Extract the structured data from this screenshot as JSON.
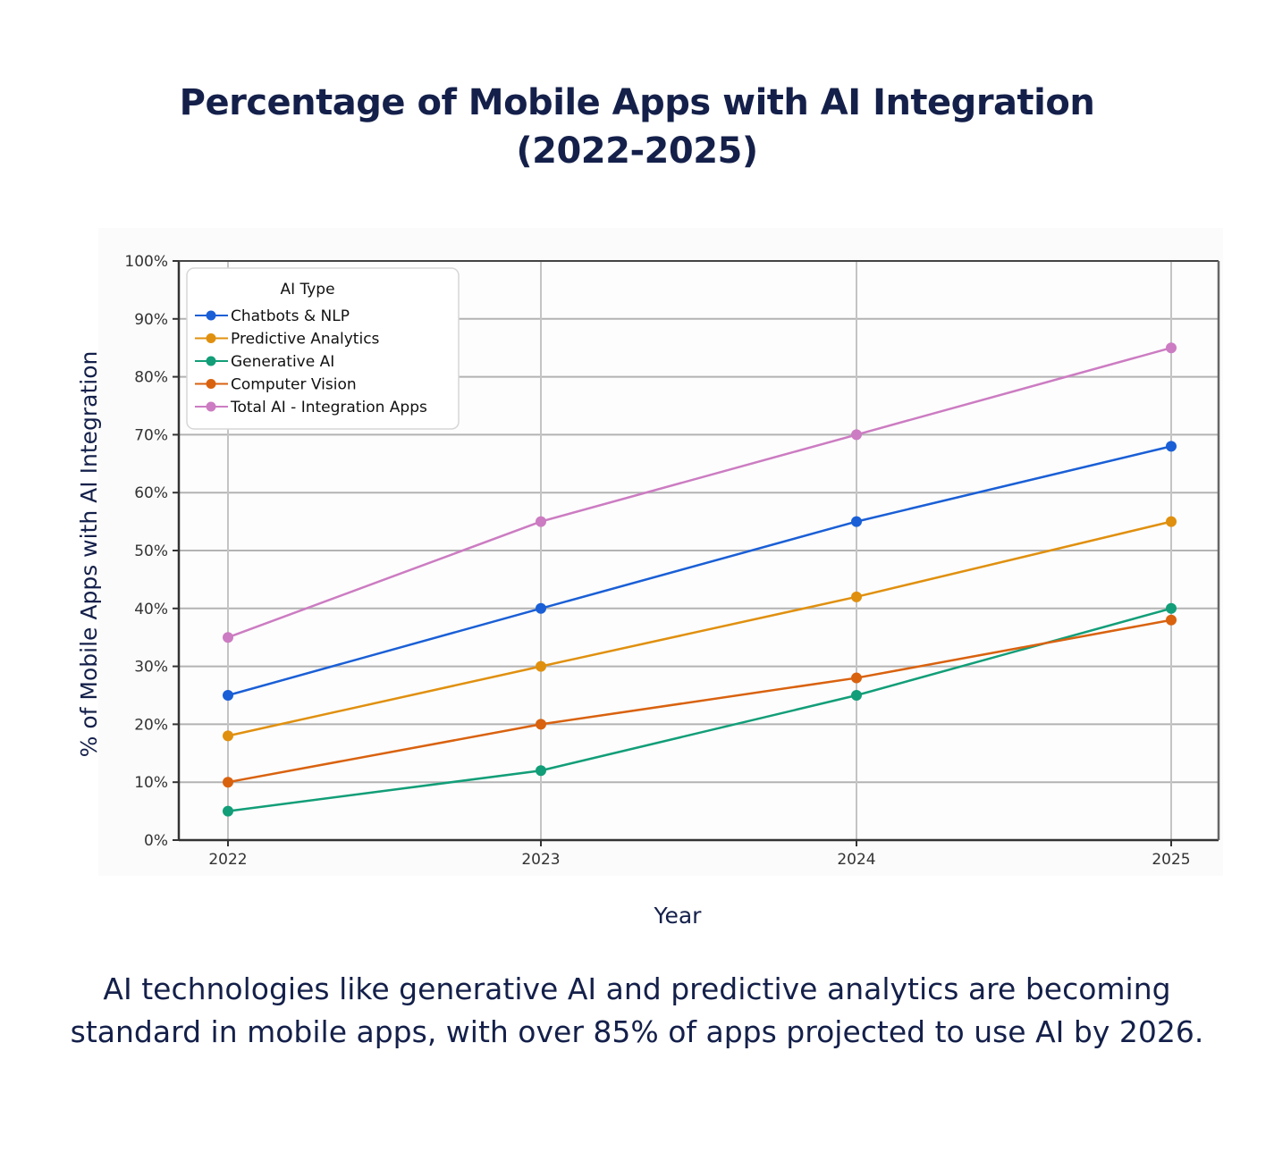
{
  "title_line1": "Percentage of Mobile Apps with AI Integration",
  "title_line2": "(2022-2025)",
  "caption_line1": "AI technologies like generative AI and predictive analytics are becoming",
  "caption_line2": "standard in mobile apps, with over 85% of apps projected to use AI by 2026.",
  "chart_data": {
    "type": "line",
    "title": "Percentage of Mobile Apps with AI Integration (2022-2025)",
    "xlabel": "Year",
    "ylabel": "% of Mobile Apps with AI Integration",
    "x": [
      "2022",
      "2023",
      "2024",
      "2025"
    ],
    "ylim": [
      0,
      100
    ],
    "yticks": [
      0,
      10,
      20,
      30,
      40,
      50,
      60,
      70,
      80,
      90,
      100
    ],
    "ytick_labels": [
      "0%",
      "10%",
      "20%",
      "30%",
      "40%",
      "50%",
      "60%",
      "70%",
      "80%",
      "90%",
      "100%"
    ],
    "grid": true,
    "legend": {
      "title": "AI Type",
      "placement": "top-left"
    },
    "series": [
      {
        "name": "Chatbots & NLP",
        "color": "#1a5fd6",
        "values": [
          25,
          40,
          55,
          68
        ]
      },
      {
        "name": "Predictive Analytics",
        "color": "#e0900f",
        "values": [
          18,
          30,
          42,
          55
        ]
      },
      {
        "name": "Generative AI",
        "color": "#129e78",
        "values": [
          5,
          12,
          25,
          40
        ]
      },
      {
        "name": "Computer Vision",
        "color": "#d9620f",
        "values": [
          10,
          20,
          28,
          38
        ]
      },
      {
        "name": "Total AI - Integration Apps",
        "color": "#cc7cc2",
        "values": [
          35,
          55,
          70,
          85
        ]
      }
    ]
  }
}
